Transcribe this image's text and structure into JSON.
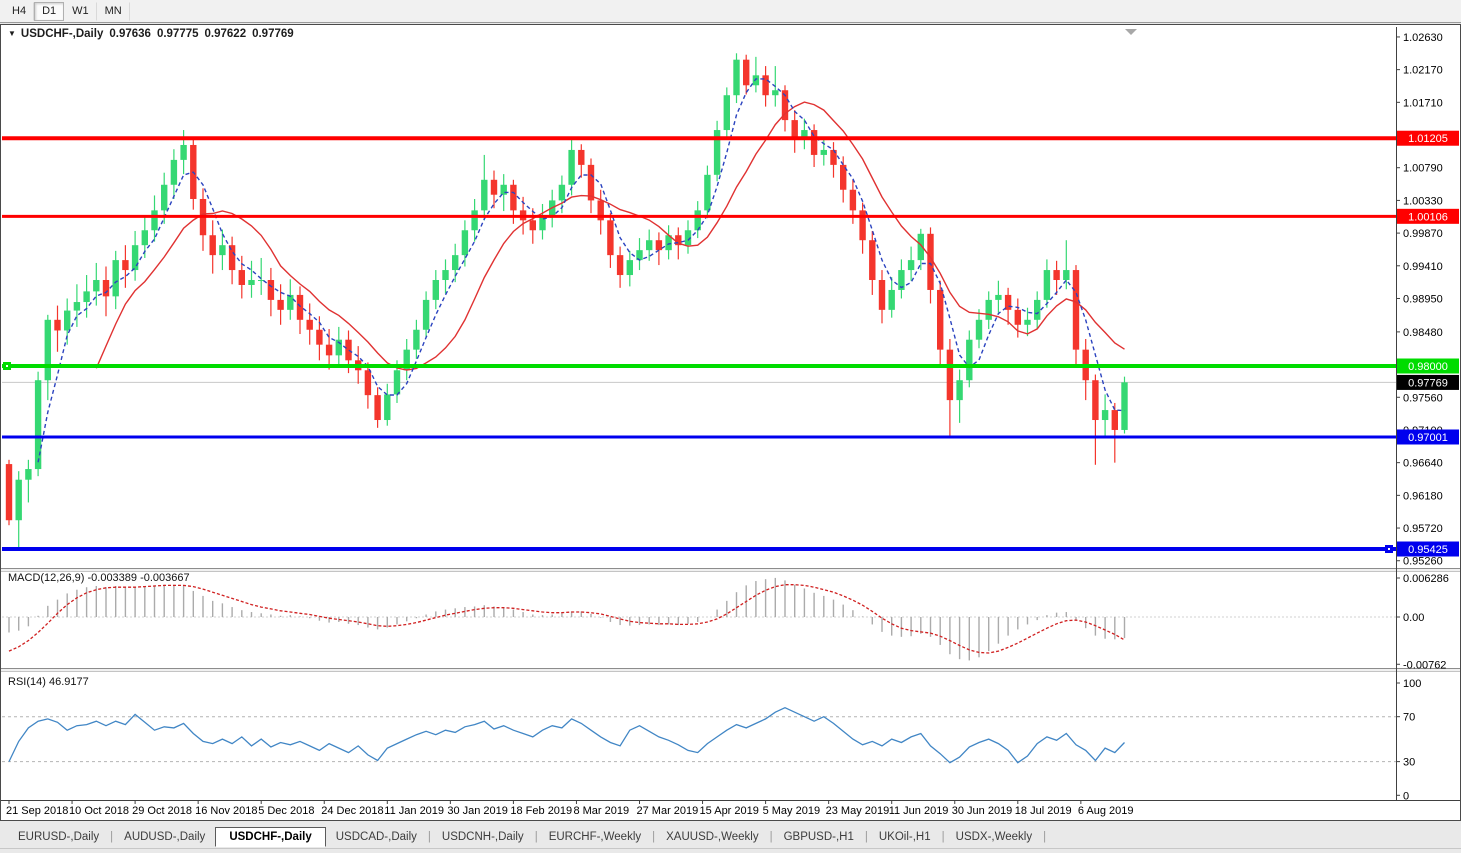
{
  "toolbar": {
    "timeframes": [
      "H4",
      "D1",
      "W1",
      "MN"
    ],
    "active": "D1"
  },
  "chart": {
    "title": "USDCHF-,Daily",
    "ohlc": {
      "open": "0.97636",
      "high": "0.97775",
      "low": "0.97622",
      "close": "0.97769"
    }
  },
  "colors": {
    "up": "#35D873",
    "down": "#F4352C",
    "ma_fast": "#2B43BF",
    "ma_slow": "#E03232",
    "macd_hist": "#ABABAB",
    "macd_signal": "#D02020",
    "rsi_line": "#4186C5",
    "level_red": "#FF0000",
    "level_green": "#00DC00",
    "level_blue": "#0000EE",
    "current_line": "#C8C8C8",
    "current_badge": "#000000",
    "axis_line": "#404040"
  },
  "chart_data": {
    "type": "candlestick",
    "symbol": "USDCHF-,Daily",
    "approx_days_per_candle": 2,
    "x_labels": [
      "21 Sep 2018",
      "10 Oct 2018",
      "29 Oct 2018",
      "16 Nov 2018",
      "5 Dec 2018",
      "24 Dec 2018",
      "11 Jan 2019",
      "30 Jan 2019",
      "18 Feb 2019",
      "8 Mar 2019",
      "27 Mar 2019",
      "15 Apr 2019",
      "5 May 2019",
      "23 May 2019",
      "11 Jun 2019",
      "30 Jun 2019",
      "18 Jul 2019",
      "6 Aug 2019"
    ],
    "candles_per_label": 6.5,
    "price_ticks": [
      "1.02630",
      "1.02170",
      "1.01710",
      "1.00790",
      "1.00330",
      "0.99870",
      "0.99410",
      "0.98950",
      "0.98480",
      "0.97560",
      "0.97100",
      "0.96640",
      "0.96180",
      "0.95720",
      "0.95260"
    ],
    "ylim": [
      0.95,
      1.0285
    ],
    "levels": [
      {
        "price": 1.01205,
        "label": "1.01205",
        "color": "#FF0000",
        "width": 4
      },
      {
        "price": 1.00106,
        "label": "1.00106",
        "color": "#FF0000",
        "width": 3
      },
      {
        "price": 0.98,
        "label": "0.98000",
        "color": "#00DC00",
        "width": 4,
        "handle": "left"
      },
      {
        "price": 0.97001,
        "label": "0.97001",
        "color": "#0000EE",
        "width": 3
      },
      {
        "price": 0.95425,
        "label": "0.95425",
        "color": "#0000EE",
        "width": 4,
        "handle": "right"
      },
      {
        "price": 0.97769,
        "label": "0.97769",
        "color": "#C8C8C8",
        "width": 1,
        "badge": "#000000",
        "current": true
      }
    ],
    "ma_fast_period": 4,
    "ma_slow_period": 10,
    "candles": [
      [
        0.9662,
        0.9668,
        0.9576,
        0.9583
      ],
      [
        0.9583,
        0.9652,
        0.954,
        0.964
      ],
      [
        0.964,
        0.9668,
        0.9608,
        0.9655
      ],
      [
        0.9655,
        0.9792,
        0.9645,
        0.978
      ],
      [
        0.978,
        0.9872,
        0.9752,
        0.9865
      ],
      [
        0.9865,
        0.9885,
        0.982,
        0.985
      ],
      [
        0.985,
        0.9895,
        0.983,
        0.9878
      ],
      [
        0.9878,
        0.9915,
        0.9855,
        0.989
      ],
      [
        0.989,
        0.9928,
        0.9868,
        0.9905
      ],
      [
        0.9905,
        0.9945,
        0.9885,
        0.9921
      ],
      [
        0.9921,
        0.994,
        0.987,
        0.9898
      ],
      [
        0.9898,
        0.9962,
        0.988,
        0.9949
      ],
      [
        0.9949,
        0.997,
        0.991,
        0.9935
      ],
      [
        0.9935,
        0.999,
        0.992,
        0.997
      ],
      [
        0.997,
        1.0012,
        0.9952,
        0.9991
      ],
      [
        0.9991,
        1.004,
        0.9975,
        1.0019
      ],
      [
        1.0019,
        1.0072,
        1.0,
        1.0055
      ],
      [
        1.0055,
        1.0105,
        1.0035,
        1.009
      ],
      [
        1.009,
        1.0132,
        1.007,
        1.0111
      ],
      [
        1.0111,
        1.012,
        1.002,
        1.0035
      ],
      [
        1.0035,
        1.005,
        0.9962,
        0.9984
      ],
      [
        0.9984,
        1.0005,
        0.993,
        0.9956
      ],
      [
        0.9956,
        0.9992,
        0.9935,
        0.997
      ],
      [
        0.997,
        0.9982,
        0.9915,
        0.9935
      ],
      [
        0.9935,
        0.9955,
        0.9895,
        0.9914
      ],
      [
        0.9914,
        0.9948,
        0.9896,
        0.9921
      ],
      [
        0.9921,
        0.9952,
        0.99,
        0.9921
      ],
      [
        0.9921,
        0.9938,
        0.987,
        0.9893
      ],
      [
        0.9893,
        0.9915,
        0.9858,
        0.9879
      ],
      [
        0.9879,
        0.9922,
        0.9865,
        0.99
      ],
      [
        0.99,
        0.9912,
        0.9845,
        0.9865
      ],
      [
        0.9865,
        0.9888,
        0.983,
        0.9851
      ],
      [
        0.9851,
        0.987,
        0.9808,
        0.983
      ],
      [
        0.983,
        0.9852,
        0.9795,
        0.9815
      ],
      [
        0.9815,
        0.9855,
        0.98,
        0.9837
      ],
      [
        0.9837,
        0.985,
        0.979,
        0.9808
      ],
      [
        0.9808,
        0.9828,
        0.9775,
        0.9794
      ],
      [
        0.9794,
        0.9805,
        0.974,
        0.9759
      ],
      [
        0.9759,
        0.977,
        0.9713,
        0.9724
      ],
      [
        0.9724,
        0.9775,
        0.9716,
        0.976
      ],
      [
        0.976,
        0.9808,
        0.9748,
        0.9794
      ],
      [
        0.9794,
        0.9838,
        0.978,
        0.9823
      ],
      [
        0.9823,
        0.9865,
        0.981,
        0.9851
      ],
      [
        0.9851,
        0.9905,
        0.984,
        0.9893
      ],
      [
        0.9893,
        0.9935,
        0.988,
        0.9921
      ],
      [
        0.9921,
        0.995,
        0.9902,
        0.9935
      ],
      [
        0.9935,
        0.9972,
        0.9918,
        0.9956
      ],
      [
        0.9956,
        1.0005,
        0.994,
        0.9991
      ],
      [
        0.9991,
        1.0035,
        0.9975,
        1.0019
      ],
      [
        1.0019,
        1.0097,
        1.0005,
        1.0062
      ],
      [
        1.0062,
        1.0075,
        1.0022,
        1.0041
      ],
      [
        1.0041,
        1.007,
        1.0018,
        1.0055
      ],
      [
        1.0055,
        1.0062,
        1.0,
        1.0019
      ],
      [
        1.0019,
        1.0038,
        0.9985,
        1.0005
      ],
      [
        1.0005,
        1.0022,
        0.9972,
        0.9991
      ],
      [
        0.9991,
        1.0028,
        0.9978,
        1.0012
      ],
      [
        1.0012,
        1.0048,
        0.9995,
        1.0033
      ],
      [
        1.0033,
        1.0068,
        1.0015,
        1.0055
      ],
      [
        1.0055,
        1.0118,
        1.004,
        1.0104
      ],
      [
        1.0104,
        1.0112,
        1.0065,
        1.0083
      ],
      [
        1.0083,
        1.0092,
        1.0015,
        1.0033
      ],
      [
        1.0033,
        1.0048,
        0.9985,
        1.0005
      ],
      [
        1.0005,
        1.0015,
        0.9938,
        0.9956
      ],
      [
        0.9956,
        0.9968,
        0.991,
        0.9928
      ],
      [
        0.9928,
        0.9962,
        0.9912,
        0.9949
      ],
      [
        0.9949,
        0.998,
        0.9935,
        0.9963
      ],
      [
        0.9963,
        0.9992,
        0.9948,
        0.9977
      ],
      [
        0.9977,
        0.9988,
        0.9942,
        0.9963
      ],
      [
        0.9963,
        0.9998,
        0.995,
        0.9984
      ],
      [
        0.9984,
        0.9995,
        0.995,
        0.997
      ],
      [
        0.997,
        1.0005,
        0.9958,
        0.9991
      ],
      [
        0.9991,
        1.0032,
        0.998,
        1.0019
      ],
      [
        1.0019,
        1.0082,
        1.0008,
        1.0069
      ],
      [
        1.0069,
        1.0145,
        1.006,
        1.0132
      ],
      [
        1.0132,
        1.0192,
        1.0122,
        1.0181
      ],
      [
        1.0181,
        1.024,
        1.017,
        1.0231
      ],
      [
        1.0231,
        1.0238,
        1.0182,
        1.0195
      ],
      [
        1.0195,
        1.0235,
        1.0185,
        1.0209
      ],
      [
        1.0209,
        1.0222,
        1.0165,
        1.0181
      ],
      [
        1.0181,
        1.0222,
        1.0165,
        1.0188
      ],
      [
        1.0188,
        1.0195,
        1.013,
        1.0146
      ],
      [
        1.0146,
        1.016,
        1.01,
        1.0118
      ],
      [
        1.0118,
        1.0148,
        1.0105,
        1.0132
      ],
      [
        1.0132,
        1.014,
        1.008,
        1.0097
      ],
      [
        1.0097,
        1.0122,
        1.0082,
        1.0104
      ],
      [
        1.0104,
        1.0115,
        1.0065,
        1.0083
      ],
      [
        1.0083,
        1.0095,
        1.003,
        1.0048
      ],
      [
        1.0048,
        1.0062,
        1.0,
        1.0019
      ],
      [
        1.0019,
        1.003,
        0.9958,
        0.9977
      ],
      [
        0.9977,
        0.999,
        0.99,
        0.9921
      ],
      [
        0.9921,
        0.9935,
        0.986,
        0.9879
      ],
      [
        0.9879,
        0.9925,
        0.9868,
        0.9907
      ],
      [
        0.9907,
        0.995,
        0.9895,
        0.9935
      ],
      [
        0.9935,
        0.9968,
        0.992,
        0.9949
      ],
      [
        0.9949,
        0.9993,
        0.9935,
        0.9986
      ],
      [
        0.9986,
        0.9995,
        0.9888,
        0.9907
      ],
      [
        0.9907,
        0.992,
        0.98,
        0.9823
      ],
      [
        0.9823,
        0.9838,
        0.97,
        0.9752
      ],
      [
        0.9752,
        0.9795,
        0.972,
        0.978
      ],
      [
        0.978,
        0.985,
        0.977,
        0.9837
      ],
      [
        0.9837,
        0.988,
        0.9825,
        0.9865
      ],
      [
        0.9865,
        0.9905,
        0.9852,
        0.9893
      ],
      [
        0.9893,
        0.992,
        0.9875,
        0.99
      ],
      [
        0.99,
        0.991,
        0.9858,
        0.9879
      ],
      [
        0.9879,
        0.9895,
        0.984,
        0.9858
      ],
      [
        0.9858,
        0.9882,
        0.9842,
        0.9865
      ],
      [
        0.9865,
        0.9905,
        0.9852,
        0.9893
      ],
      [
        0.9893,
        0.995,
        0.9882,
        0.9935
      ],
      [
        0.9935,
        0.9948,
        0.99,
        0.9921
      ],
      [
        0.9921,
        0.9977,
        0.9908,
        0.9935
      ],
      [
        0.9935,
        0.9942,
        0.98,
        0.9823
      ],
      [
        0.9823,
        0.9838,
        0.9752,
        0.978
      ],
      [
        0.978,
        0.9788,
        0.9661,
        0.9724
      ],
      [
        0.9724,
        0.976,
        0.97,
        0.9738
      ],
      [
        0.9738,
        0.9748,
        0.9664,
        0.971
      ],
      [
        0.971,
        0.9785,
        0.9705,
        0.9777
      ]
    ],
    "macd": {
      "label": "MACD(12,26,9)",
      "value": "-0.003389",
      "signal_value": "-0.003667",
      "ticks": [
        {
          "v": 0.006286,
          "label": "0.006286"
        },
        {
          "v": 0,
          "label": "0.00"
        },
        {
          "v": -0.00762,
          "label": "-0.00762"
        }
      ],
      "values": [
        -0.0025,
        -0.0022,
        -0.0015,
        0.0002,
        0.0018,
        0.0028,
        0.0038,
        0.0044,
        0.0048,
        0.005,
        0.0048,
        0.005,
        0.0047,
        0.0048,
        0.005,
        0.0051,
        0.0052,
        0.0052,
        0.005,
        0.0042,
        0.0034,
        0.0026,
        0.0022,
        0.0016,
        0.0011,
        0.0008,
        0.0006,
        0.0004,
        0.0002,
        0.0003,
        0.0001,
        -0.0002,
        -0.0006,
        -0.0009,
        -0.0008,
        -0.0011,
        -0.0013,
        -0.0017,
        -0.002,
        -0.0017,
        -0.0012,
        -0.0007,
        -0.0002,
        0.0004,
        0.0009,
        0.0012,
        0.0014,
        0.0016,
        0.0017,
        0.0019,
        0.0017,
        0.0016,
        0.0012,
        0.0008,
        0.0004,
        0.0003,
        0.0004,
        0.0006,
        0.0009,
        0.0009,
        0.0005,
        -0.0001,
        -0.0008,
        -0.0013,
        -0.0014,
        -0.0013,
        -0.0012,
        -0.0013,
        -0.0012,
        -0.0013,
        -0.0011,
        -0.0008,
        0.0,
        0.0012,
        0.0026,
        0.004,
        0.0051,
        0.0058,
        0.0061,
        0.0063,
        0.0059,
        0.0052,
        0.0046,
        0.0039,
        0.0034,
        0.0028,
        0.002,
        0.0011,
        0.0001,
        -0.0012,
        -0.0024,
        -0.003,
        -0.0032,
        -0.0031,
        -0.0027,
        -0.0032,
        -0.0045,
        -0.006,
        -0.0068,
        -0.007,
        -0.0065,
        -0.0055,
        -0.0043,
        -0.003,
        -0.002,
        -0.0012,
        -0.0005,
        0.0003,
        0.0007,
        0.0008,
        -0.0005,
        -0.0018,
        -0.003,
        -0.0035,
        -0.0036,
        -0.0034
      ],
      "signal": [
        -0.0055,
        -0.0048,
        -0.0038,
        -0.0025,
        -0.001,
        0.0006,
        0.002,
        0.0031,
        0.0039,
        0.0044,
        0.0047,
        0.0048,
        0.0048,
        0.0048,
        0.0049,
        0.005,
        0.0051,
        0.0051,
        0.0051,
        0.0049,
        0.0045,
        0.004,
        0.0035,
        0.003,
        0.0025,
        0.002,
        0.0016,
        0.0013,
        0.001,
        0.0008,
        0.0006,
        0.0004,
        0.0001,
        -0.0002,
        -0.0004,
        -0.0006,
        -0.0008,
        -0.0011,
        -0.0014,
        -0.0015,
        -0.0014,
        -0.0012,
        -0.0009,
        -0.0005,
        -0.0001,
        0.0003,
        0.0006,
        0.0009,
        0.0012,
        0.0014,
        0.0015,
        0.0015,
        0.0014,
        0.0012,
        0.001,
        0.0008,
        0.0007,
        0.0007,
        0.0008,
        0.0008,
        0.0007,
        0.0005,
        0.0001,
        -0.0003,
        -0.0007,
        -0.0009,
        -0.001,
        -0.0011,
        -0.0011,
        -0.0012,
        -0.0012,
        -0.0011,
        -0.0008,
        -0.0003,
        0.0005,
        0.0015,
        0.0025,
        0.0035,
        0.0043,
        0.0049,
        0.0052,
        0.0052,
        0.0051,
        0.0048,
        0.0044,
        0.004,
        0.0034,
        0.0027,
        0.0019,
        0.0009,
        -0.0002,
        -0.0011,
        -0.0018,
        -0.0022,
        -0.0024,
        -0.0026,
        -0.0031,
        -0.0038,
        -0.0046,
        -0.0053,
        -0.0057,
        -0.0058,
        -0.0055,
        -0.0049,
        -0.0042,
        -0.0034,
        -0.0026,
        -0.0018,
        -0.0011,
        -0.0006,
        -0.0005,
        -0.0008,
        -0.0014,
        -0.0021,
        -0.0028,
        -0.0037
      ]
    },
    "rsi": {
      "label": "RSI(14)",
      "value": "46.9177",
      "ticks": [
        {
          "v": 100,
          "label": "100"
        },
        {
          "v": 70,
          "label": "70"
        },
        {
          "v": 30,
          "label": "30"
        },
        {
          "v": 0,
          "label": "0"
        }
      ],
      "level_lines": [
        70,
        30
      ],
      "values": [
        30,
        48,
        60,
        66,
        68,
        65,
        58,
        62,
        63,
        66,
        62,
        66,
        63,
        72,
        65,
        58,
        61,
        60,
        64,
        55,
        48,
        46,
        50,
        46,
        52,
        44,
        50,
        43,
        47,
        45,
        48,
        44,
        40,
        46,
        42,
        38,
        44,
        36,
        31,
        42,
        46,
        50,
        54,
        57,
        54,
        58,
        56,
        61,
        63,
        66,
        59,
        62,
        58,
        55,
        52,
        58,
        62,
        60,
        68,
        64,
        58,
        52,
        47,
        44,
        58,
        62,
        57,
        52,
        49,
        45,
        40,
        38,
        46,
        52,
        58,
        63,
        60,
        64,
        68,
        74,
        78,
        74,
        70,
        66,
        70,
        64,
        57,
        50,
        45,
        48,
        44,
        50,
        47,
        52,
        55,
        44,
        37,
        29,
        34,
        43,
        47,
        50,
        46,
        40,
        29,
        35,
        46,
        52,
        49,
        55,
        45,
        40,
        31,
        42,
        38,
        47
      ]
    }
  },
  "tabs": {
    "items": [
      {
        "label": "EURUSD-,Daily",
        "active": false
      },
      {
        "label": "AUDUSD-,Daily",
        "active": false
      },
      {
        "label": "USDCHF-,Daily",
        "active": true
      },
      {
        "label": "USDCAD-,Daily",
        "active": false
      },
      {
        "label": "USDCNH-,Daily",
        "active": false
      },
      {
        "label": "EURCHF-,Weekly",
        "active": false
      },
      {
        "label": "XAUUSD-,Weekly",
        "active": false
      },
      {
        "label": "GBPUSD-,H1",
        "active": false
      },
      {
        "label": "UKOil-,H1",
        "active": false
      },
      {
        "label": "USDX-,Weekly",
        "active": false
      }
    ]
  }
}
